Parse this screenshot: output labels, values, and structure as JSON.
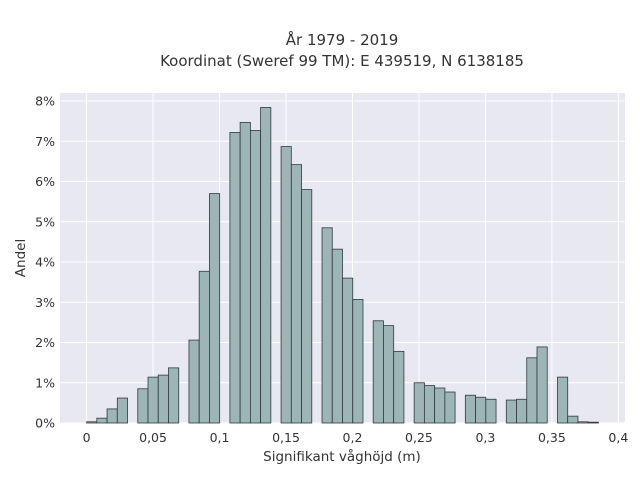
{
  "chart_data": {
    "type": "bar",
    "title": "År 1979 - 2019",
    "subtitle": "Koordinat (Sweref 99 TM): E 439519, N 6138185",
    "xlabel": "Signifikant våghöjd (m)",
    "ylabel": "Andel",
    "xlim": [
      -0.02,
      0.405
    ],
    "ylim": [
      0,
      0.082
    ],
    "grid": true,
    "bar_color": "#9db5b5",
    "bar_edge_color": "#2f3b3b",
    "plot_background": "#e8e8f0",
    "x_ticks": [
      {
        "value": 0,
        "label": "0"
      },
      {
        "value": 0.05,
        "label": "0,05"
      },
      {
        "value": 0.1,
        "label": "0,1"
      },
      {
        "value": 0.15,
        "label": "0,15"
      },
      {
        "value": 0.2,
        "label": "0,2"
      },
      {
        "value": 0.25,
        "label": "0,25"
      },
      {
        "value": 0.3,
        "label": "0,3"
      },
      {
        "value": 0.35,
        "label": "0,35"
      },
      {
        "value": 0.4,
        "label": "0,4"
      }
    ],
    "y_ticks": [
      {
        "value": 0,
        "label": "0%"
      },
      {
        "value": 0.01,
        "label": "1%"
      },
      {
        "value": 0.02,
        "label": "2%"
      },
      {
        "value": 0.03,
        "label": "3%"
      },
      {
        "value": 0.04,
        "label": "4%"
      },
      {
        "value": 0.05,
        "label": "5%"
      },
      {
        "value": 0.06,
        "label": "6%"
      },
      {
        "value": 0.07,
        "label": "7%"
      },
      {
        "value": 0.08,
        "label": "8%"
      }
    ],
    "bins": [
      {
        "x0": 0.0,
        "x1": 0.0077,
        "value": 0.0003
      },
      {
        "x0": 0.0077,
        "x1": 0.0154,
        "value": 0.0012
      },
      {
        "x0": 0.0154,
        "x1": 0.0231,
        "value": 0.0035
      },
      {
        "x0": 0.0231,
        "x1": 0.0308,
        "value": 0.0062
      },
      {
        "x0": 0.0385,
        "x1": 0.0462,
        "value": 0.0085
      },
      {
        "x0": 0.0462,
        "x1": 0.0539,
        "value": 0.0114
      },
      {
        "x0": 0.0539,
        "x1": 0.0616,
        "value": 0.0119
      },
      {
        "x0": 0.0616,
        "x1": 0.0693,
        "value": 0.0137
      },
      {
        "x0": 0.077,
        "x1": 0.0847,
        "value": 0.0206
      },
      {
        "x0": 0.0847,
        "x1": 0.0924,
        "value": 0.0377
      },
      {
        "x0": 0.0924,
        "x1": 0.1001,
        "value": 0.057
      },
      {
        "x0": 0.1078,
        "x1": 0.1155,
        "value": 0.0722
      },
      {
        "x0": 0.1155,
        "x1": 0.1232,
        "value": 0.0747
      },
      {
        "x0": 0.1232,
        "x1": 0.1309,
        "value": 0.0727
      },
      {
        "x0": 0.1309,
        "x1": 0.1386,
        "value": 0.0784
      },
      {
        "x0": 0.1463,
        "x1": 0.154,
        "value": 0.0687
      },
      {
        "x0": 0.154,
        "x1": 0.1617,
        "value": 0.0642
      },
      {
        "x0": 0.1617,
        "x1": 0.1694,
        "value": 0.058
      },
      {
        "x0": 0.1771,
        "x1": 0.1848,
        "value": 0.0485
      },
      {
        "x0": 0.1848,
        "x1": 0.1925,
        "value": 0.0432
      },
      {
        "x0": 0.1925,
        "x1": 0.2002,
        "value": 0.036
      },
      {
        "x0": 0.2002,
        "x1": 0.2079,
        "value": 0.0307
      },
      {
        "x0": 0.2156,
        "x1": 0.2233,
        "value": 0.0254
      },
      {
        "x0": 0.2233,
        "x1": 0.231,
        "value": 0.0242
      },
      {
        "x0": 0.231,
        "x1": 0.2387,
        "value": 0.0178
      },
      {
        "x0": 0.2464,
        "x1": 0.2541,
        "value": 0.01
      },
      {
        "x0": 0.2541,
        "x1": 0.2618,
        "value": 0.0093
      },
      {
        "x0": 0.2618,
        "x1": 0.2695,
        "value": 0.0087
      },
      {
        "x0": 0.2695,
        "x1": 0.2772,
        "value": 0.0077
      },
      {
        "x0": 0.2849,
        "x1": 0.2926,
        "value": 0.0069
      },
      {
        "x0": 0.2926,
        "x1": 0.3003,
        "value": 0.0064
      },
      {
        "x0": 0.3003,
        "x1": 0.308,
        "value": 0.0059
      },
      {
        "x0": 0.3157,
        "x1": 0.3234,
        "value": 0.0057
      },
      {
        "x0": 0.3234,
        "x1": 0.3311,
        "value": 0.0059
      },
      {
        "x0": 0.3311,
        "x1": 0.3388,
        "value": 0.0162
      },
      {
        "x0": 0.3388,
        "x1": 0.3465,
        "value": 0.0189
      },
      {
        "x0": 0.3542,
        "x1": 0.3619,
        "value": 0.0114
      },
      {
        "x0": 0.3619,
        "x1": 0.3696,
        "value": 0.0017
      },
      {
        "x0": 0.3696,
        "x1": 0.3773,
        "value": 0.0003
      },
      {
        "x0": 0.3773,
        "x1": 0.385,
        "value": 0.0002
      }
    ]
  }
}
